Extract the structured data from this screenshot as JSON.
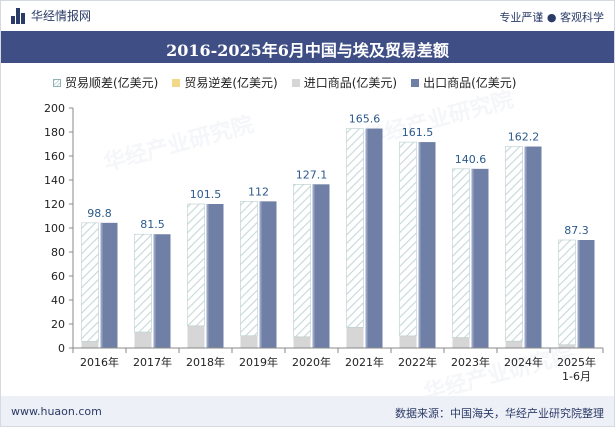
{
  "header": {
    "brand": "华经情报网",
    "tagline": "专业严谨 ● 客观科学",
    "title": "2016-2025年6月中国与埃及贸易差额"
  },
  "legend": {
    "surplus": "贸易顺差(亿美元)",
    "deficit": "贸易逆差(亿美元)",
    "imports": "进口商品(亿美元)",
    "exports": "出口商品(亿美元)"
  },
  "watermark": "华经产业研究院",
  "footer": {
    "website": "www.huaon.com",
    "source": "数据来源：中国海关，华经产业研究院整理"
  },
  "colors": {
    "title_band": "#3f4f86",
    "export": "#6f7fa6",
    "import": "#d6d6d6",
    "surplus_hatch": "#c5d8d8",
    "label": "#2c5a8c"
  },
  "chart_data": {
    "type": "bar",
    "categories": [
      "2016年",
      "2017年",
      "2018年",
      "2019年",
      "2020年",
      "2021年",
      "2022年",
      "2023年",
      "2024年",
      "2025年1-6月"
    ],
    "series": [
      {
        "name": "贸易顺差(亿美元)",
        "values": [
          98.8,
          81.5,
          101.5,
          112,
          127.1,
          165.6,
          161.5,
          140.6,
          162.2,
          87.3
        ]
      },
      {
        "name": "贸易逆差(亿美元)",
        "values": [
          0,
          0,
          0,
          0,
          0,
          0,
          0,
          0,
          0,
          0
        ]
      },
      {
        "name": "进口商品(亿美元)",
        "values": [
          5.5,
          13.3,
          18.5,
          10.2,
          9.3,
          17.3,
          10.1,
          8.7,
          5.7,
          2.7
        ]
      },
      {
        "name": "出口商品(亿美元)",
        "values": [
          104.3,
          94.8,
          120,
          122.2,
          136.4,
          182.9,
          171.6,
          149.3,
          167.9,
          90
        ]
      }
    ],
    "data_labels": [
      "98.8",
      "81.5",
      "101.5",
      "112",
      "127.1",
      "165.6",
      "161.5",
      "140.6",
      "162.2",
      "87.3"
    ],
    "ylim": [
      0,
      200
    ],
    "yticks": [
      0,
      20,
      40,
      60,
      80,
      100,
      120,
      140,
      160,
      180,
      200
    ],
    "grid": false,
    "legend_position": "top"
  }
}
